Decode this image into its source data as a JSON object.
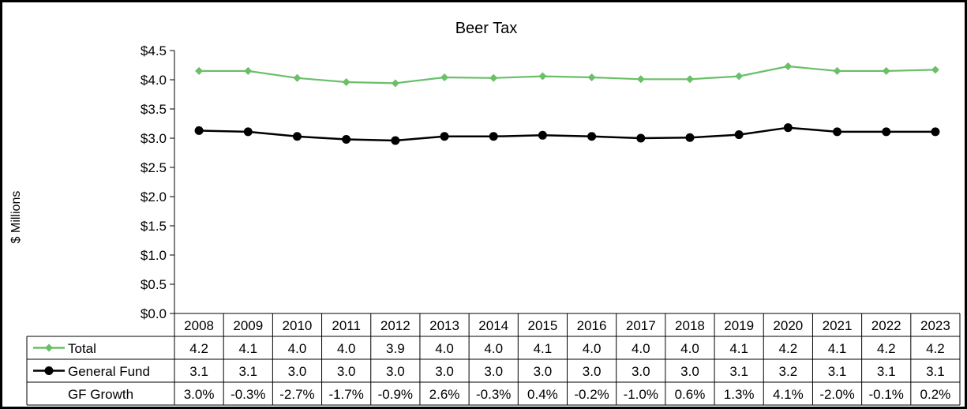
{
  "chart_data": {
    "type": "line",
    "title": "Beer Tax",
    "ylabel": "$ Millions",
    "xlabel": "",
    "ylim": [
      0,
      4.5
    ],
    "y_ticks": [
      "$0.0",
      "$0.5",
      "$1.0",
      "$1.5",
      "$2.0",
      "$2.5",
      "$3.0",
      "$3.5",
      "$4.0",
      "$4.5"
    ],
    "y_tick_values": [
      0,
      0.5,
      1.0,
      1.5,
      2.0,
      2.5,
      3.0,
      3.5,
      4.0,
      4.5
    ],
    "grid": false,
    "categories": [
      "2008",
      "2009",
      "2010",
      "2011",
      "2012",
      "2013",
      "2014",
      "2015",
      "2016",
      "2017",
      "2018",
      "2019",
      "2020",
      "2021",
      "2022",
      "2023"
    ],
    "series": [
      {
        "name": "Total",
        "color": "#6abf69",
        "marker": "diamond",
        "values": [
          4.15,
          4.15,
          4.03,
          3.96,
          3.94,
          4.04,
          4.03,
          4.06,
          4.04,
          4.01,
          4.01,
          4.06,
          4.23,
          4.15,
          4.15,
          4.17
        ],
        "table_values": [
          "4.2",
          "4.1",
          "4.0",
          "4.0",
          "3.9",
          "4.0",
          "4.0",
          "4.1",
          "4.0",
          "4.0",
          "4.0",
          "4.1",
          "4.2",
          "4.1",
          "4.2",
          "4.2"
        ]
      },
      {
        "name": "General Fund",
        "color": "#000000",
        "marker": "circle",
        "values": [
          3.13,
          3.11,
          3.03,
          2.98,
          2.96,
          3.03,
          3.03,
          3.05,
          3.03,
          3.0,
          3.01,
          3.06,
          3.18,
          3.11,
          3.11,
          3.11
        ],
        "table_values": [
          "3.1",
          "3.1",
          "3.0",
          "3.0",
          "3.0",
          "3.0",
          "3.0",
          "3.0",
          "3.0",
          "3.0",
          "3.0",
          "3.1",
          "3.2",
          "3.1",
          "3.1",
          "3.1"
        ]
      }
    ],
    "growth_row": {
      "name": "GF Growth",
      "values": [
        "3.0%",
        "-0.3%",
        "-2.7%",
        "-1.7%",
        "-0.9%",
        "2.6%",
        "-0.3%",
        "0.4%",
        "-0.2%",
        "-1.0%",
        "0.6%",
        "1.3%",
        "4.1%",
        "-2.0%",
        "-0.1%",
        "0.2%"
      ]
    }
  }
}
